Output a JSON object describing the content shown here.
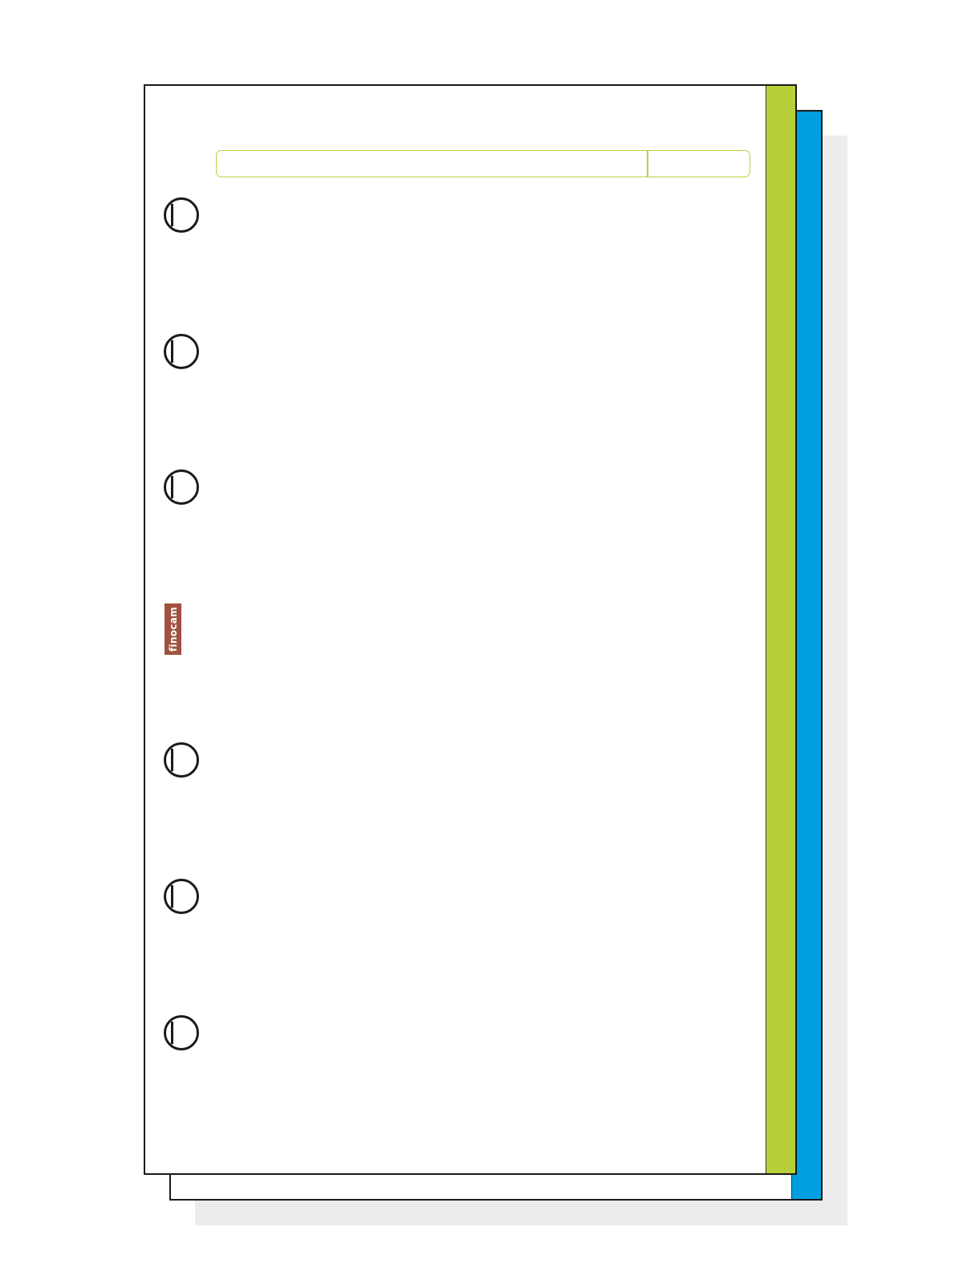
{
  "brand": {
    "logo_text": "finocam",
    "logo_color": "#a0513f"
  },
  "colors": {
    "front_tab": "#b8cf3a",
    "back_tab": "#009fe0",
    "header_outline": "#b8cf3a",
    "shadow": "#ececec"
  },
  "ring_holes": {
    "count": 6,
    "icon": "ring-hole-icon"
  }
}
